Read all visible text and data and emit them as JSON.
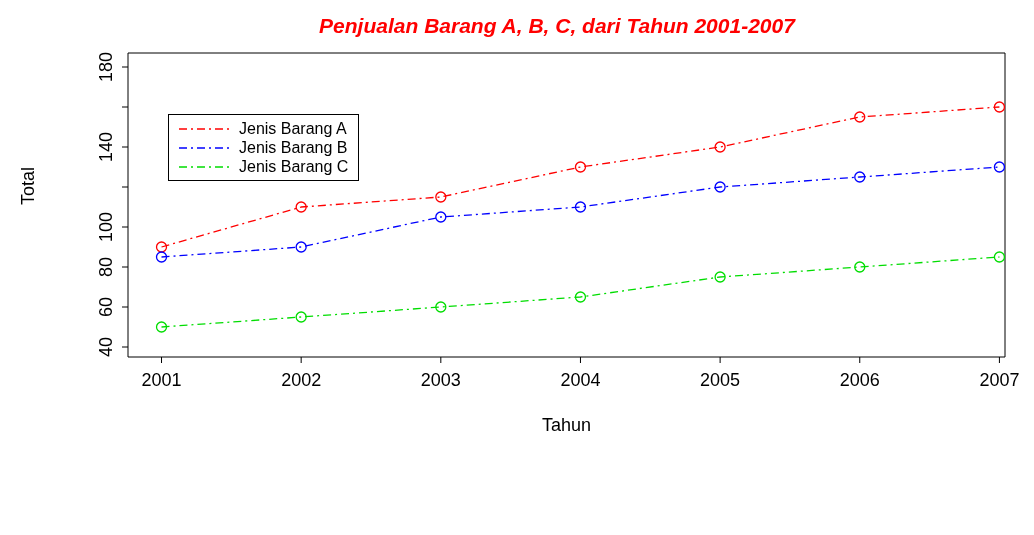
{
  "chart_data": {
    "type": "line",
    "title": "Penjualan Barang A, B, C, dari Tahun 2001-2007",
    "xlabel": "Tahun",
    "ylabel": "Total",
    "x": [
      2001,
      2002,
      2003,
      2004,
      2005,
      2006,
      2007
    ],
    "series": [
      {
        "name": "Jenis Barang A",
        "color": "#ff0000",
        "values": [
          90,
          110,
          115,
          130,
          140,
          155,
          160
        ]
      },
      {
        "name": "Jenis Barang B",
        "color": "#0000ff",
        "values": [
          85,
          90,
          105,
          110,
          120,
          125,
          130
        ]
      },
      {
        "name": "Jenis Barang C",
        "color": "#00dd00",
        "values": [
          50,
          55,
          60,
          65,
          75,
          80,
          85
        ]
      }
    ],
    "xlim": [
      2000.76,
      2007.04
    ],
    "xticks": [
      2001,
      2002,
      2003,
      2004,
      2005,
      2006,
      2007
    ],
    "ylim": [
      35,
      187
    ],
    "yticks": [
      40,
      60,
      80,
      100,
      {
        "value": 120,
        "label": null
      },
      140,
      {
        "value": 160,
        "label": null
      },
      180
    ],
    "grid": false,
    "legend": "top left",
    "marker": "circle",
    "line_style": "dashed"
  }
}
